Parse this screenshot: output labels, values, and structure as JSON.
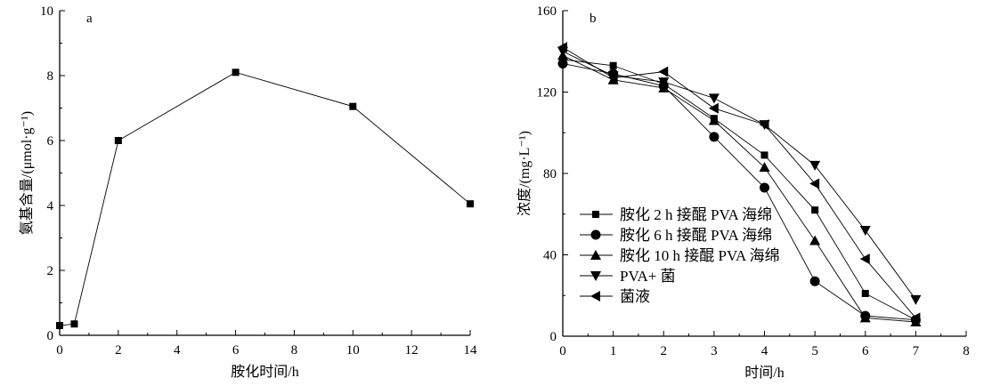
{
  "chart_data": [
    {
      "type": "line",
      "panel_label": "a",
      "xlabel": "胺化时间/h",
      "ylabel": "氨基含量/(μmol·g⁻¹)",
      "xlim": [
        0,
        14
      ],
      "ylim": [
        0,
        10
      ],
      "xticks": [
        0,
        2,
        4,
        6,
        8,
        10,
        12,
        14
      ],
      "yticks": [
        0,
        2,
        4,
        6,
        8,
        10
      ],
      "grid": false,
      "marker": "square",
      "x": [
        0,
        0.5,
        2,
        6,
        10,
        14
      ],
      "y": [
        0.3,
        0.35,
        6.0,
        8.1,
        7.05,
        4.05
      ]
    },
    {
      "type": "line",
      "panel_label": "b",
      "xlabel": "时间/h",
      "ylabel": "浓度/(mg·L⁻¹)",
      "xlim": [
        0,
        8
      ],
      "ylim": [
        0,
        160
      ],
      "xticks": [
        0,
        1,
        2,
        3,
        4,
        5,
        6,
        7,
        8
      ],
      "yticks": [
        0,
        40,
        80,
        120,
        160
      ],
      "grid": false,
      "legend_position": "bottom-left",
      "x": [
        0,
        1,
        2,
        3,
        4,
        5,
        6,
        7
      ],
      "series": [
        {
          "name": "胺化 2 h 接醌 PVA 海绵",
          "marker": "square",
          "values": [
            136,
            133,
            124,
            107,
            89,
            62,
            21,
            8
          ]
        },
        {
          "name": "胺化 6 h 接醌 PVA 海绵",
          "marker": "circle",
          "values": [
            134,
            129,
            123,
            98,
            73,
            27,
            10,
            8
          ]
        },
        {
          "name": "胺化 10 h 接醌 PVA 海绵",
          "marker": "triangle-up",
          "values": [
            138,
            126,
            122,
            106,
            83,
            47,
            9,
            7
          ]
        },
        {
          "name": "PVA+ 菌",
          "marker": "triangle-down",
          "values": [
            140,
            128,
            125,
            117,
            104,
            84,
            52,
            18
          ]
        },
        {
          "name": "菌液",
          "marker": "triangle-left",
          "values": [
            142,
            127,
            130,
            112,
            104,
            75,
            38,
            9
          ]
        }
      ]
    }
  ]
}
